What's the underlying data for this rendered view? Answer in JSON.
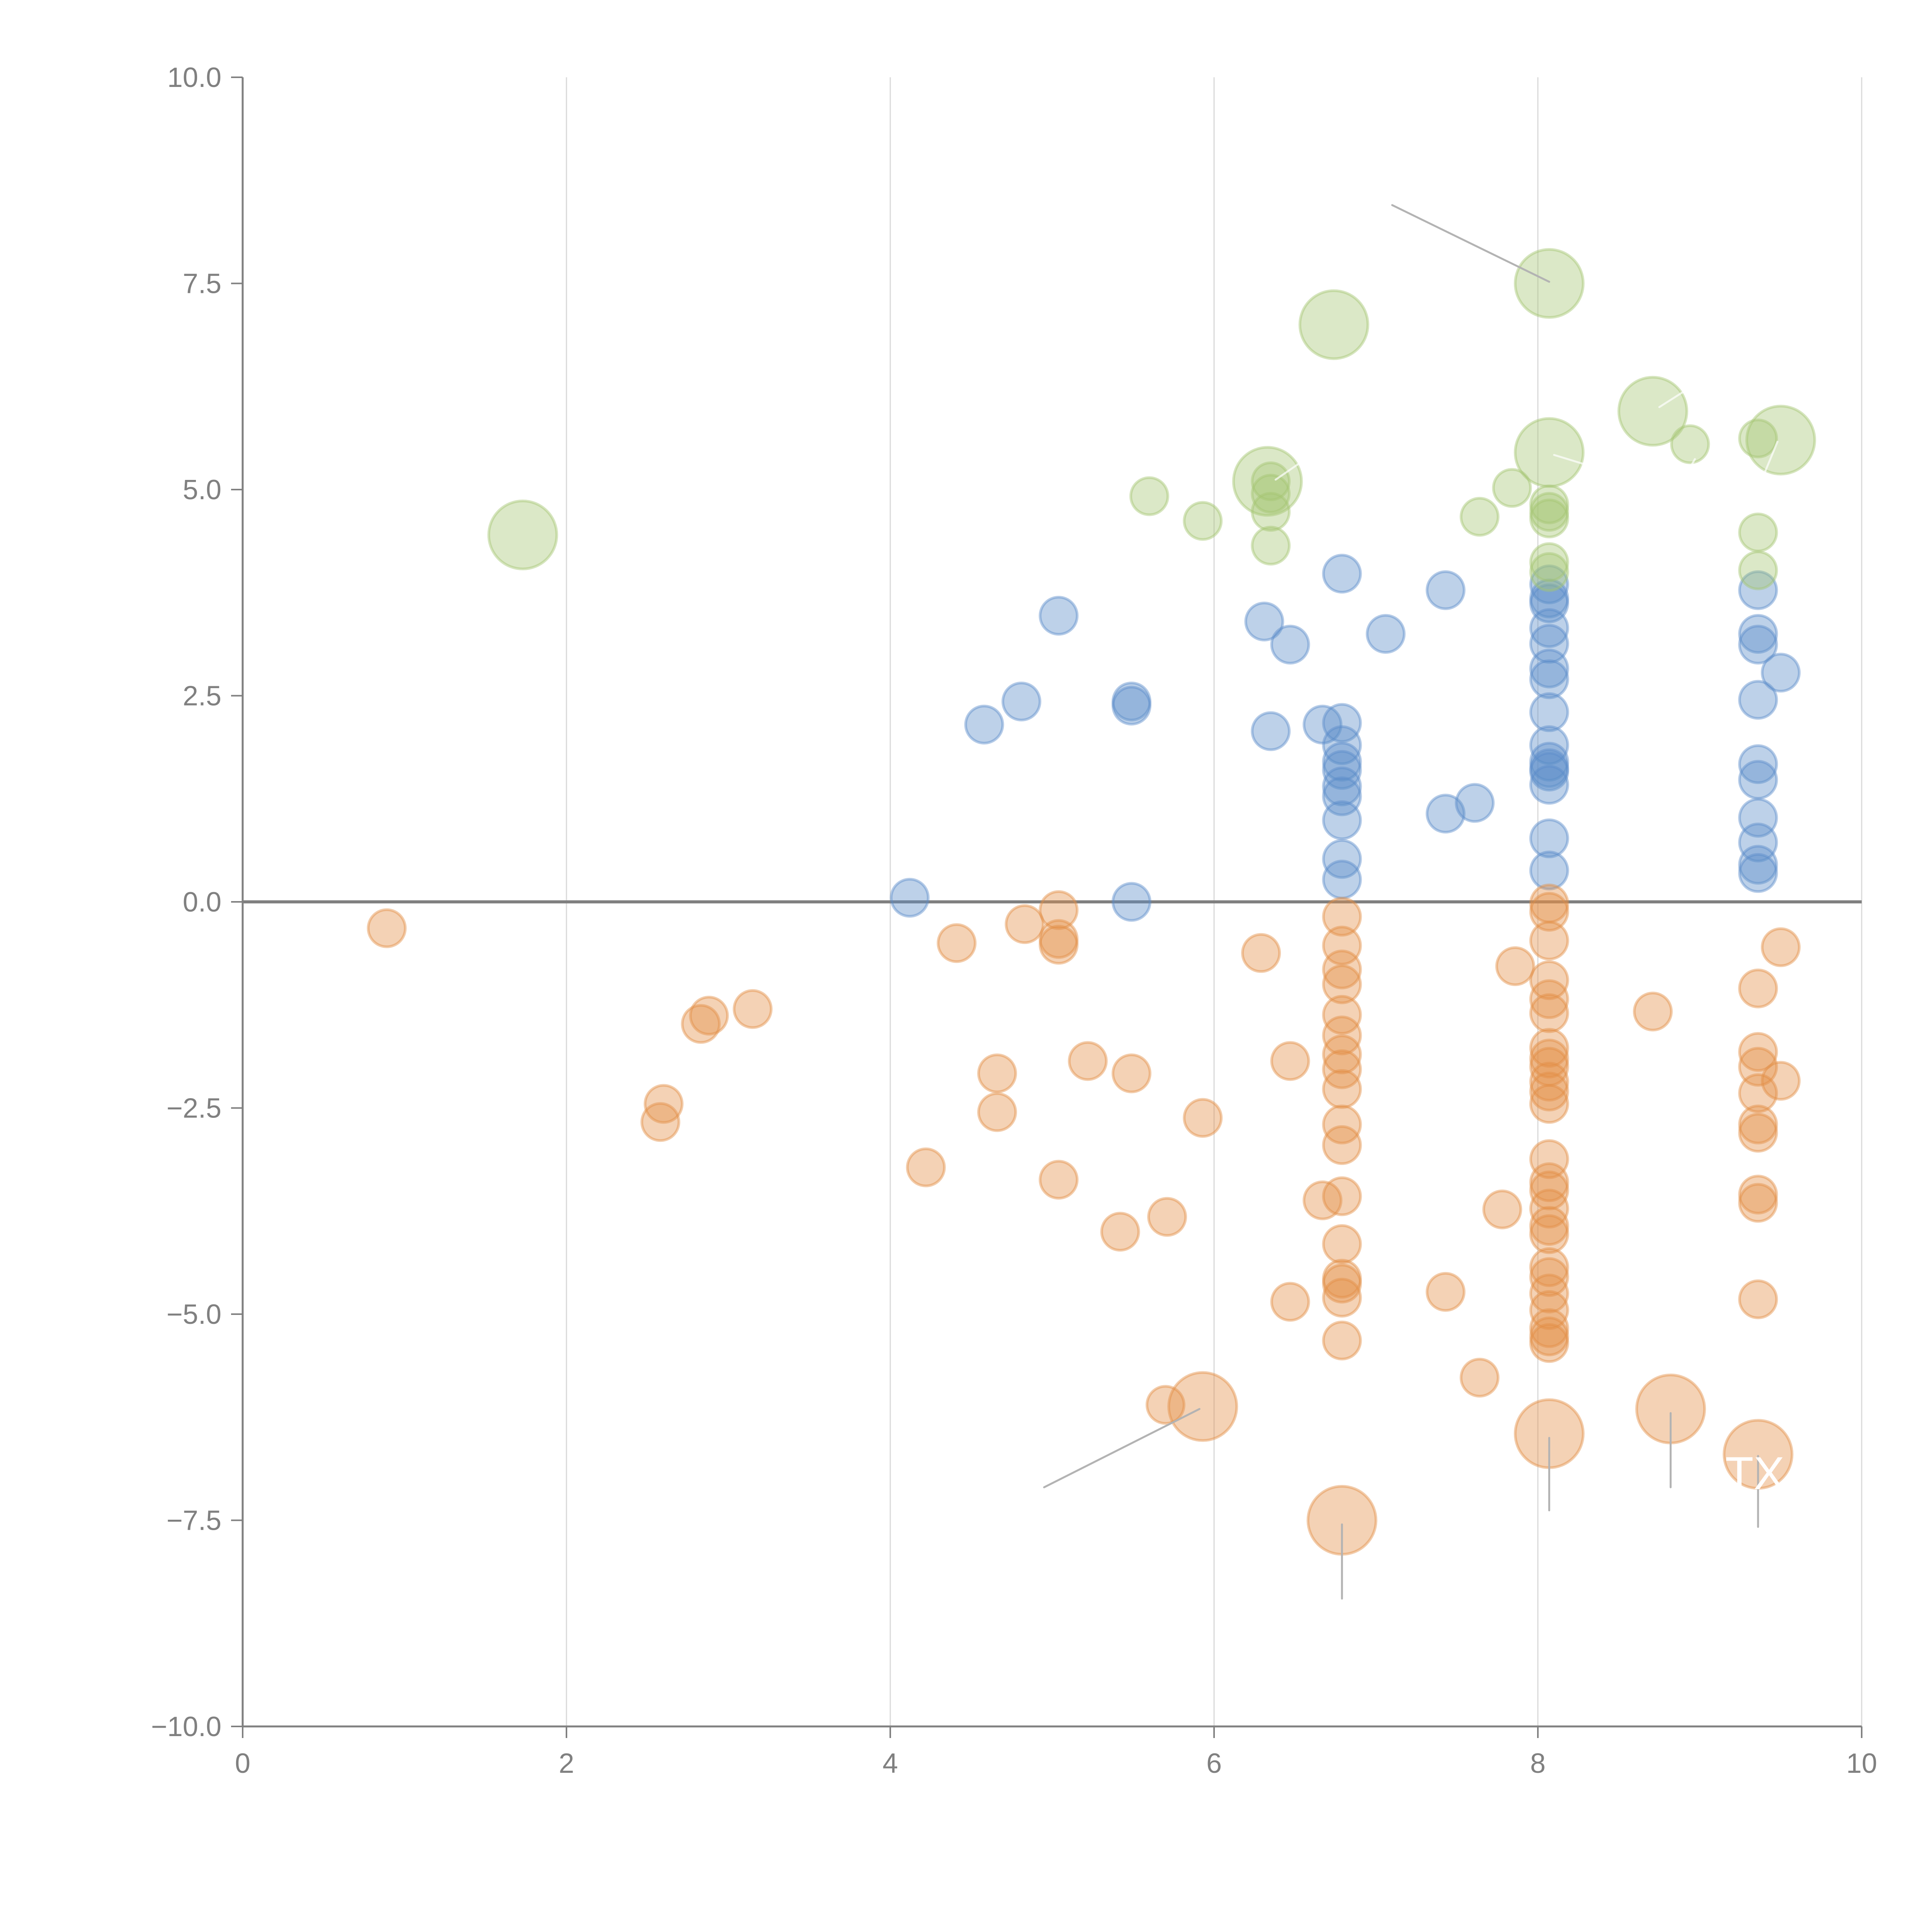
{
  "chart_data": {
    "type": "scatter",
    "title": "",
    "xlabel": "",
    "ylabel": "",
    "xlim": [
      0,
      10
    ],
    "ylim": [
      -10,
      10
    ],
    "grid": "vertical",
    "legend": "none",
    "x_ticks": [
      "0",
      "2",
      "4",
      "6",
      "8",
      "10"
    ],
    "x_tick_values": [
      0,
      2,
      4,
      6,
      8,
      10
    ],
    "y_ticks": [
      "10.0",
      "7.5",
      "5.0",
      "2.5",
      "0.0",
      "−2.5",
      "−5.0",
      "−7.5",
      "−10.0"
    ],
    "y_tick_values": [
      10,
      7.5,
      5,
      2.5,
      0,
      -2.5,
      -5,
      -7.5,
      -10
    ],
    "reference_line_y": 0,
    "colors": {
      "blue": "#5b8cc9",
      "orange": "#e38e45",
      "green": "#a5c572"
    },
    "series": [
      {
        "name": "blue",
        "color_key": "blue",
        "points": [
          {
            "x": 4.12,
            "y": 0.05,
            "size": 1
          },
          {
            "x": 4.58,
            "y": 2.15,
            "size": 1
          },
          {
            "x": 4.81,
            "y": 2.43,
            "size": 1
          },
          {
            "x": 5.04,
            "y": 3.47,
            "size": 1
          },
          {
            "x": 5.49,
            "y": 2.43,
            "size": 1
          },
          {
            "x": 5.49,
            "y": 2.38,
            "size": 1
          },
          {
            "x": 5.49,
            "y": 0.0,
            "size": 1
          },
          {
            "x": 6.31,
            "y": 3.4,
            "size": 1
          },
          {
            "x": 6.35,
            "y": 2.07,
            "size": 1
          },
          {
            "x": 6.47,
            "y": 3.12,
            "size": 1
          },
          {
            "x": 6.67,
            "y": 2.15,
            "size": 1
          },
          {
            "x": 6.79,
            "y": 3.98,
            "size": 1
          },
          {
            "x": 6.79,
            "y": 2.17,
            "size": 1
          },
          {
            "x": 6.79,
            "y": 1.9,
            "size": 1
          },
          {
            "x": 6.79,
            "y": 1.7,
            "size": 1
          },
          {
            "x": 6.79,
            "y": 1.6,
            "size": 1
          },
          {
            "x": 6.79,
            "y": 1.4,
            "size": 1
          },
          {
            "x": 6.79,
            "y": 1.28,
            "size": 1
          },
          {
            "x": 6.79,
            "y": 0.99,
            "size": 1
          },
          {
            "x": 6.79,
            "y": 0.52,
            "size": 1
          },
          {
            "x": 6.79,
            "y": 0.27,
            "size": 1
          },
          {
            "x": 7.06,
            "y": 3.25,
            "size": 1
          },
          {
            "x": 7.43,
            "y": 3.78,
            "size": 1
          },
          {
            "x": 7.43,
            "y": 1.07,
            "size": 1
          },
          {
            "x": 7.61,
            "y": 1.2,
            "size": 1
          },
          {
            "x": 8.07,
            "y": 3.85,
            "size": 1
          },
          {
            "x": 8.07,
            "y": 3.68,
            "size": 1
          },
          {
            "x": 8.07,
            "y": 3.62,
            "size": 1
          },
          {
            "x": 8.07,
            "y": 3.32,
            "size": 1
          },
          {
            "x": 8.07,
            "y": 3.13,
            "size": 1
          },
          {
            "x": 8.07,
            "y": 2.83,
            "size": 1
          },
          {
            "x": 8.07,
            "y": 2.7,
            "size": 1
          },
          {
            "x": 8.07,
            "y": 2.3,
            "size": 1
          },
          {
            "x": 8.07,
            "y": 1.9,
            "size": 1
          },
          {
            "x": 8.07,
            "y": 1.7,
            "size": 1
          },
          {
            "x": 8.07,
            "y": 1.62,
            "size": 1
          },
          {
            "x": 8.07,
            "y": 1.58,
            "size": 1
          },
          {
            "x": 8.07,
            "y": 1.42,
            "size": 1
          },
          {
            "x": 8.07,
            "y": 0.77,
            "size": 1
          },
          {
            "x": 8.07,
            "y": 0.38,
            "size": 1
          },
          {
            "x": 9.36,
            "y": 3.78,
            "size": 1
          },
          {
            "x": 9.36,
            "y": 3.25,
            "size": 1
          },
          {
            "x": 9.36,
            "y": 3.12,
            "size": 1
          },
          {
            "x": 9.36,
            "y": 2.45,
            "size": 1
          },
          {
            "x": 9.36,
            "y": 1.67,
            "size": 1
          },
          {
            "x": 9.36,
            "y": 1.48,
            "size": 1
          },
          {
            "x": 9.36,
            "y": 1.02,
            "size": 1
          },
          {
            "x": 9.36,
            "y": 0.72,
            "size": 1
          },
          {
            "x": 9.36,
            "y": 0.45,
            "size": 1
          },
          {
            "x": 9.36,
            "y": 0.35,
            "size": 1
          },
          {
            "x": 9.5,
            "y": 2.78,
            "size": 1
          }
        ]
      },
      {
        "name": "orange",
        "color_key": "orange",
        "points": [
          {
            "x": 0.89,
            "y": -0.32,
            "size": 1
          },
          {
            "x": 2.58,
            "y": -2.67,
            "size": 1
          },
          {
            "x": 2.6,
            "y": -2.45,
            "size": 1
          },
          {
            "x": 2.83,
            "y": -1.48,
            "size": 1
          },
          {
            "x": 2.88,
            "y": -1.38,
            "size": 1
          },
          {
            "x": 3.15,
            "y": -1.3,
            "size": 1
          },
          {
            "x": 4.22,
            "y": -3.22,
            "size": 1
          },
          {
            "x": 4.41,
            "y": -0.5,
            "size": 1
          },
          {
            "x": 4.66,
            "y": -2.08,
            "size": 1
          },
          {
            "x": 4.66,
            "y": -2.55,
            "size": 1
          },
          {
            "x": 4.83,
            "y": -0.27,
            "size": 1
          },
          {
            "x": 5.04,
            "y": -0.1,
            "size": 1
          },
          {
            "x": 5.04,
            "y": -0.45,
            "size": 1
          },
          {
            "x": 5.04,
            "y": -0.52,
            "size": 1
          },
          {
            "x": 5.04,
            "y": -3.37,
            "size": 1
          },
          {
            "x": 5.22,
            "y": -1.93,
            "size": 1
          },
          {
            "x": 5.42,
            "y": -4.0,
            "size": 1
          },
          {
            "x": 5.49,
            "y": -2.08,
            "size": 1
          },
          {
            "x": 5.71,
            "y": -3.82,
            "size": 1
          },
          {
            "x": 5.7,
            "y": -6.1,
            "size": 1
          },
          {
            "x": 5.93,
            "y": -2.62,
            "size": 1
          },
          {
            "x": 6.29,
            "y": -0.62,
            "size": 1
          },
          {
            "x": 6.47,
            "y": -1.93,
            "size": 1
          },
          {
            "x": 6.47,
            "y": -4.85,
            "size": 1
          },
          {
            "x": 6.67,
            "y": -3.62,
            "size": 1
          },
          {
            "x": 6.79,
            "y": -0.18,
            "size": 1
          },
          {
            "x": 6.79,
            "y": -0.53,
            "size": 1
          },
          {
            "x": 6.79,
            "y": -0.82,
            "size": 1
          },
          {
            "x": 6.79,
            "y": -1.0,
            "size": 1
          },
          {
            "x": 6.79,
            "y": -1.37,
            "size": 1
          },
          {
            "x": 6.79,
            "y": -1.62,
            "size": 1
          },
          {
            "x": 6.79,
            "y": -1.85,
            "size": 1
          },
          {
            "x": 6.79,
            "y": -2.03,
            "size": 1
          },
          {
            "x": 6.79,
            "y": -2.27,
            "size": 1
          },
          {
            "x": 6.79,
            "y": -2.7,
            "size": 1
          },
          {
            "x": 6.79,
            "y": -2.95,
            "size": 1
          },
          {
            "x": 6.79,
            "y": -3.57,
            "size": 1
          },
          {
            "x": 6.79,
            "y": -4.15,
            "size": 1
          },
          {
            "x": 6.79,
            "y": -4.57,
            "size": 1
          },
          {
            "x": 6.79,
            "y": -4.63,
            "size": 1
          },
          {
            "x": 6.79,
            "y": -4.8,
            "size": 1
          },
          {
            "x": 6.79,
            "y": -5.32,
            "size": 1
          },
          {
            "x": 7.43,
            "y": -4.73,
            "size": 1
          },
          {
            "x": 7.64,
            "y": -5.77,
            "size": 1
          },
          {
            "x": 7.78,
            "y": -3.73,
            "size": 1
          },
          {
            "x": 7.86,
            "y": -0.78,
            "size": 1
          },
          {
            "x": 8.07,
            "y": -0.02,
            "size": 1
          },
          {
            "x": 8.07,
            "y": -0.12,
            "size": 1
          },
          {
            "x": 8.07,
            "y": -0.47,
            "size": 1
          },
          {
            "x": 8.07,
            "y": -0.95,
            "size": 1
          },
          {
            "x": 8.07,
            "y": -1.18,
            "size": 1
          },
          {
            "x": 8.07,
            "y": -1.35,
            "size": 1
          },
          {
            "x": 8.07,
            "y": -1.77,
            "size": 1
          },
          {
            "x": 8.07,
            "y": -1.9,
            "size": 1
          },
          {
            "x": 8.07,
            "y": -2.0,
            "size": 1
          },
          {
            "x": 8.07,
            "y": -2.18,
            "size": 1
          },
          {
            "x": 8.07,
            "y": -2.3,
            "size": 1
          },
          {
            "x": 8.07,
            "y": -2.45,
            "size": 1
          },
          {
            "x": 8.07,
            "y": -3.12,
            "size": 1
          },
          {
            "x": 8.07,
            "y": -3.4,
            "size": 1
          },
          {
            "x": 8.07,
            "y": -3.5,
            "size": 1
          },
          {
            "x": 8.07,
            "y": -3.72,
            "size": 1
          },
          {
            "x": 8.07,
            "y": -3.93,
            "size": 1
          },
          {
            "x": 8.07,
            "y": -4.03,
            "size": 1
          },
          {
            "x": 8.07,
            "y": -4.43,
            "size": 1
          },
          {
            "x": 8.07,
            "y": -4.55,
            "size": 1
          },
          {
            "x": 8.07,
            "y": -4.75,
            "size": 1
          },
          {
            "x": 8.07,
            "y": -4.95,
            "size": 1
          },
          {
            "x": 8.07,
            "y": -5.17,
            "size": 1
          },
          {
            "x": 8.07,
            "y": -5.27,
            "size": 1
          },
          {
            "x": 8.07,
            "y": -5.35,
            "size": 1
          },
          {
            "x": 8.71,
            "y": -1.33,
            "size": 1
          },
          {
            "x": 9.36,
            "y": -1.05,
            "size": 1
          },
          {
            "x": 9.36,
            "y": -1.82,
            "size": 1
          },
          {
            "x": 9.36,
            "y": -2.0,
            "size": 1
          },
          {
            "x": 9.36,
            "y": -2.32,
            "size": 1
          },
          {
            "x": 9.36,
            "y": -2.7,
            "size": 1
          },
          {
            "x": 9.36,
            "y": -2.8,
            "size": 1
          },
          {
            "x": 9.36,
            "y": -3.55,
            "size": 1
          },
          {
            "x": 9.36,
            "y": -3.65,
            "size": 1
          },
          {
            "x": 9.36,
            "y": -4.82,
            "size": 1
          },
          {
            "x": 9.5,
            "y": -0.55,
            "size": 1
          },
          {
            "x": 9.5,
            "y": -2.17,
            "size": 1
          },
          {
            "x": 5.93,
            "y": -6.12,
            "size": 2
          },
          {
            "x": 6.79,
            "y": -7.5,
            "size": 2
          },
          {
            "x": 8.07,
            "y": -6.45,
            "size": 2
          },
          {
            "x": 8.82,
            "y": -6.15,
            "size": 2
          },
          {
            "x": 9.36,
            "y": -6.7,
            "size": 2
          }
        ]
      },
      {
        "name": "green",
        "color_key": "green",
        "points": [
          {
            "x": 1.73,
            "y": 4.45,
            "size": 2
          },
          {
            "x": 5.6,
            "y": 4.92,
            "size": 1
          },
          {
            "x": 5.93,
            "y": 4.62,
            "size": 1
          },
          {
            "x": 6.35,
            "y": 5.1,
            "size": 1
          },
          {
            "x": 6.35,
            "y": 4.95,
            "size": 1
          },
          {
            "x": 6.35,
            "y": 4.73,
            "size": 1
          },
          {
            "x": 6.35,
            "y": 4.32,
            "size": 1
          },
          {
            "x": 6.33,
            "y": 5.1,
            "size": 2
          },
          {
            "x": 6.74,
            "y": 7.0,
            "size": 2
          },
          {
            "x": 7.64,
            "y": 4.67,
            "size": 1
          },
          {
            "x": 7.84,
            "y": 5.02,
            "size": 1
          },
          {
            "x": 8.07,
            "y": 7.5,
            "size": 2
          },
          {
            "x": 8.07,
            "y": 5.45,
            "size": 2
          },
          {
            "x": 8.07,
            "y": 4.82,
            "size": 1
          },
          {
            "x": 8.07,
            "y": 4.73,
            "size": 1
          },
          {
            "x": 8.07,
            "y": 4.65,
            "size": 1
          },
          {
            "x": 8.07,
            "y": 4.12,
            "size": 1
          },
          {
            "x": 8.07,
            "y": 4.0,
            "size": 1
          },
          {
            "x": 8.71,
            "y": 5.95,
            "size": 2
          },
          {
            "x": 8.94,
            "y": 5.55,
            "size": 1
          },
          {
            "x": 9.36,
            "y": 5.62,
            "size": 1
          },
          {
            "x": 9.36,
            "y": 4.48,
            "size": 1
          },
          {
            "x": 9.36,
            "y": 4.02,
            "size": 1
          },
          {
            "x": 9.5,
            "y": 5.6,
            "size": 2
          }
        ]
      }
    ],
    "annotations": [
      {
        "text": "TX",
        "x": 9.36,
        "y": -6.7,
        "color": "#ffffff"
      }
    ],
    "leader_lines": [
      {
        "from": [
          7.1,
          8.45
        ],
        "to": [
          8.07,
          7.52
        ],
        "color": "gray"
      },
      {
        "from": [
          4.95,
          -7.1
        ],
        "to": [
          5.91,
          -6.15
        ],
        "color": "gray"
      },
      {
        "from": [
          6.79,
          -8.45
        ],
        "to": [
          6.79,
          -7.55
        ],
        "color": "gray"
      },
      {
        "from": [
          8.07,
          -7.38
        ],
        "to": [
          8.07,
          -6.5
        ],
        "color": "gray"
      },
      {
        "from": [
          8.82,
          -7.1
        ],
        "to": [
          8.82,
          -6.2
        ],
        "color": "gray"
      },
      {
        "from": [
          9.36,
          -7.58
        ],
        "to": [
          9.36,
          -6.72
        ],
        "color": "gray"
      },
      {
        "from": [
          6.38,
          5.12
        ],
        "to": [
          6.55,
          5.35
        ],
        "color": "white"
      },
      {
        "from": [
          8.1,
          5.42
        ],
        "to": [
          8.3,
          5.3
        ],
        "color": "white"
      },
      {
        "from": [
          8.75,
          6.0
        ],
        "to": [
          8.95,
          6.25
        ],
        "color": "white"
      },
      {
        "from": [
          9.48,
          5.58
        ],
        "to": [
          9.4,
          5.2
        ],
        "color": "white"
      },
      {
        "from": [
          8.95,
          5.3
        ],
        "to": [
          8.97,
          5.37
        ],
        "color": "white"
      }
    ]
  }
}
